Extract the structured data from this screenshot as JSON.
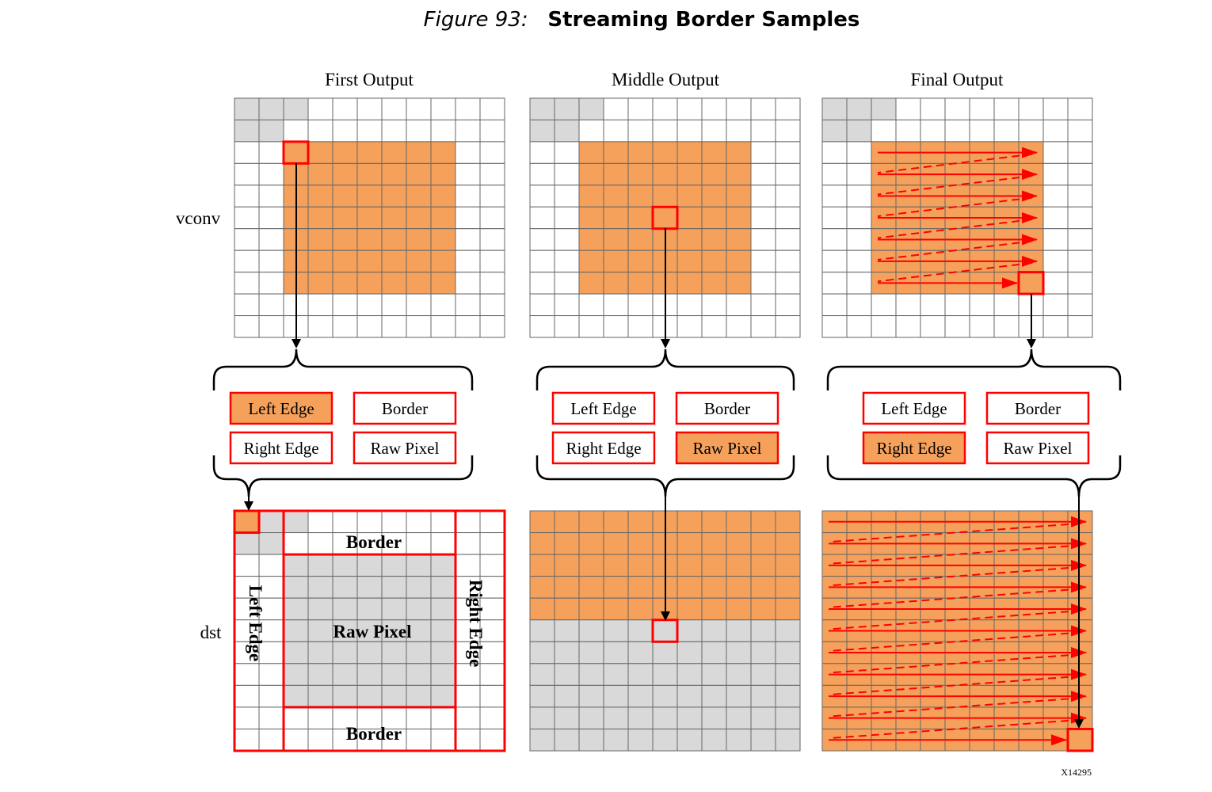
{
  "caption": {
    "figure_number": "Figure 93:",
    "title": "Streaming Border Samples"
  },
  "columns": [
    {
      "title": "First Output",
      "highlighted_category": "Left Edge"
    },
    {
      "title": "Middle Output",
      "highlighted_category": "Raw Pixel"
    },
    {
      "title": "Final Output",
      "highlighted_category": "Right Edge"
    }
  ],
  "rows": [
    {
      "label": "vconv"
    },
    {
      "label": "dst"
    }
  ],
  "categories": [
    "Left Edge",
    "Border",
    "Right Edge",
    "Raw Pixel"
  ],
  "dst_regions": {
    "top": "Border",
    "bottom": "Border",
    "left": "Left Edge",
    "right": "Right Edge",
    "center": "Raw Pixel"
  },
  "grid": {
    "rows": 11,
    "cols": 11
  },
  "colors": {
    "orange": "#f6a15b",
    "gray": "#d9d9d9",
    "red": "#ff0000",
    "grid_line": "#666666",
    "black": "#000000"
  },
  "footer_id": "X14295"
}
